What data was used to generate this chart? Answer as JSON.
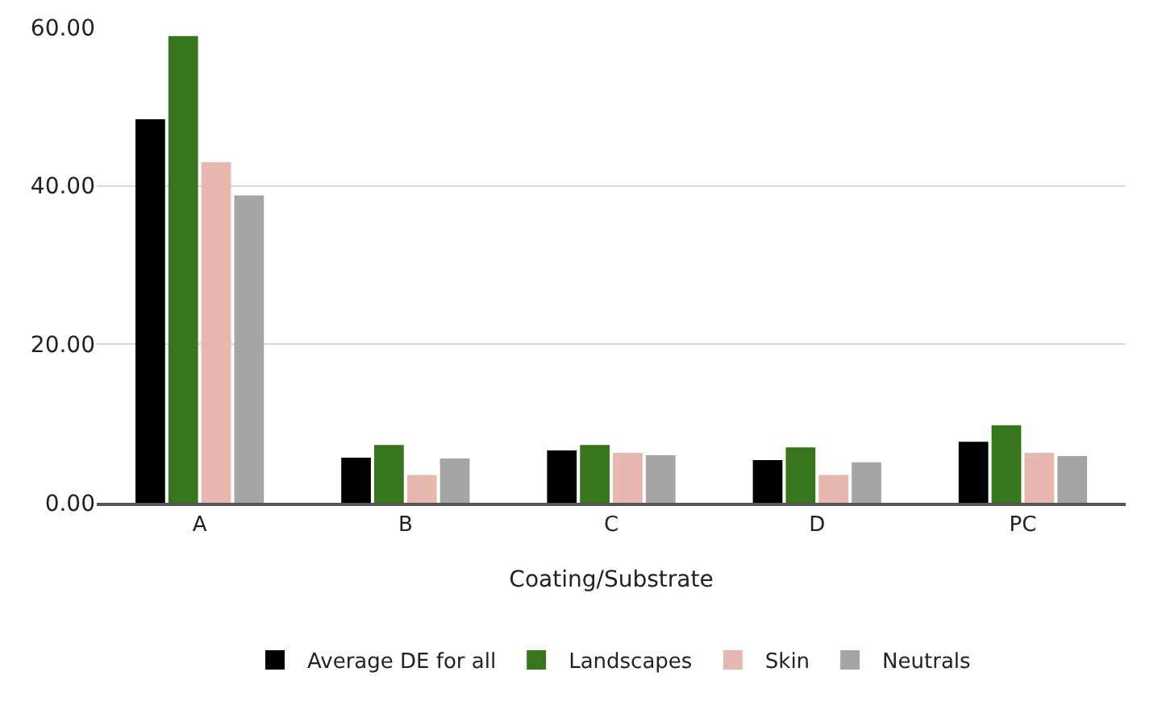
{
  "chart_data": {
    "type": "bar",
    "xlabel": "Coating/Substrate",
    "categories": [
      "A",
      "B",
      "C",
      "D",
      "PC"
    ],
    "series": [
      {
        "name": "Average DE for all",
        "color": "#000000",
        "values": [
          48.4,
          5.7,
          6.6,
          5.4,
          7.7
        ]
      },
      {
        "name": "Landscapes",
        "color": "#38761d",
        "values": [
          58.9,
          7.3,
          7.3,
          7.0,
          9.8
        ]
      },
      {
        "name": "Skin",
        "color": "#e6b8af",
        "values": [
          43.0,
          3.5,
          6.3,
          3.5,
          6.3
        ]
      },
      {
        "name": "Neutrals",
        "color": "#a5a5a5",
        "values": [
          38.8,
          5.6,
          6.0,
          5.1,
          5.9
        ]
      }
    ],
    "ylim": [
      0,
      60
    ],
    "yticks": [
      {
        "value": 0,
        "label": "0.00"
      },
      {
        "value": 20,
        "label": "20.00"
      },
      {
        "value": 40,
        "label": "40.00"
      },
      {
        "value": 60,
        "label": "60.00"
      }
    ],
    "grid": "y",
    "legend": "bottom"
  }
}
